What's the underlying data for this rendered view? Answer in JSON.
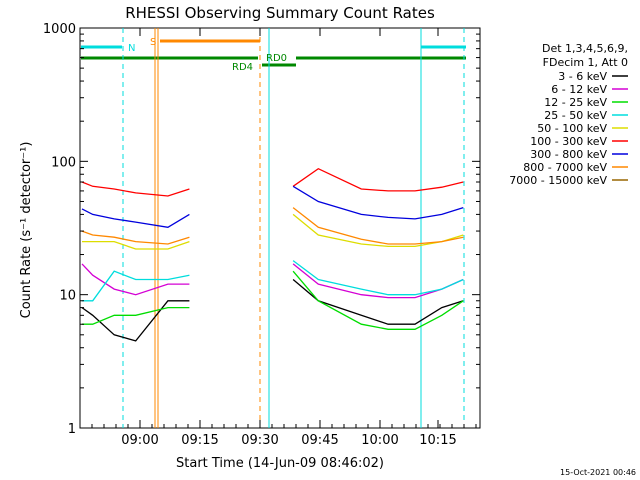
{
  "chart_data": {
    "type": "line",
    "title": "RHESSI Observing Summary Count Rates",
    "xlabel": "Start Time (14-Jun-09 08:46:02)",
    "ylabel": "Count Rate (s⁻¹ detector⁻¹)",
    "y_scale": "log",
    "ylim": [
      1,
      1000
    ],
    "xlim_minutes": [
      -2.2,
      23.7
    ],
    "x_ticks": [
      "09:00",
      "09:15",
      "09:30",
      "09:45",
      "10:00",
      "10:15"
    ],
    "y_ticks": [
      "1",
      "10",
      "100",
      "1000"
    ],
    "timestamp": "15-Oct-2021 00:46",
    "legend": {
      "position": "right",
      "header": [
        "Det 1,3,4,5,6,9,",
        "FDecim 1, Att 0"
      ]
    },
    "series": [
      {
        "name": "3 - 6 keV",
        "color": "#000000",
        "values": [
          [
            -2,
            8
          ],
          [
            0,
            7
          ],
          [
            4,
            5
          ],
          [
            8,
            4.5
          ],
          [
            14,
            9
          ],
          [
            18,
            9
          ],
          [
            18.5,
            null
          ],
          [
            37,
            null
          ],
          [
            37.3,
            13
          ],
          [
            42,
            9
          ],
          [
            50,
            7
          ],
          [
            55,
            6
          ],
          [
            60,
            6
          ],
          [
            65,
            8
          ],
          [
            69,
            9
          ],
          [
            69.5,
            null
          ]
        ]
      },
      {
        "name": "6 - 12 keV",
        "color": "#d400d4",
        "values": [
          [
            -2,
            17
          ],
          [
            0,
            14
          ],
          [
            4,
            11
          ],
          [
            8,
            10
          ],
          [
            14,
            12
          ],
          [
            18,
            12
          ],
          [
            18.5,
            null
          ],
          [
            37,
            null
          ],
          [
            37.3,
            17
          ],
          [
            42,
            12
          ],
          [
            50,
            10
          ],
          [
            55,
            9.5
          ],
          [
            60,
            9.5
          ],
          [
            65,
            11
          ],
          [
            69,
            13
          ],
          [
            69.5,
            null
          ]
        ]
      },
      {
        "name": "12 - 25 keV",
        "color": "#00dd00",
        "values": [
          [
            -2,
            6
          ],
          [
            0,
            6
          ],
          [
            4,
            7
          ],
          [
            8,
            7
          ],
          [
            14,
            8
          ],
          [
            18,
            8
          ],
          [
            18.5,
            null
          ],
          [
            37,
            null
          ],
          [
            37.3,
            15
          ],
          [
            42,
            9
          ],
          [
            50,
            6
          ],
          [
            55,
            5.5
          ],
          [
            60,
            5.5
          ],
          [
            65,
            7
          ],
          [
            69,
            9
          ],
          [
            69.5,
            null
          ]
        ]
      },
      {
        "name": "25 - 50 keV",
        "color": "#00dddd",
        "values": [
          [
            -2,
            9
          ],
          [
            0,
            9
          ],
          [
            4,
            15
          ],
          [
            8,
            13
          ],
          [
            14,
            13
          ],
          [
            18,
            14
          ],
          [
            18.5,
            null
          ],
          [
            37,
            null
          ],
          [
            37.3,
            18
          ],
          [
            42,
            13
          ],
          [
            50,
            11
          ],
          [
            55,
            10
          ],
          [
            60,
            10
          ],
          [
            65,
            11
          ],
          [
            69,
            13
          ],
          [
            69.5,
            null
          ]
        ]
      },
      {
        "name": "50 - 100 keV",
        "color": "#dddd00",
        "values": [
          [
            -2,
            25
          ],
          [
            0,
            25
          ],
          [
            4,
            25
          ],
          [
            8,
            22
          ],
          [
            14,
            22
          ],
          [
            18,
            25
          ],
          [
            18.5,
            null
          ],
          [
            37,
            null
          ],
          [
            37.3,
            40
          ],
          [
            42,
            28
          ],
          [
            50,
            24
          ],
          [
            55,
            23
          ],
          [
            60,
            23
          ],
          [
            65,
            25
          ],
          [
            69,
            28
          ],
          [
            69.5,
            null
          ]
        ]
      },
      {
        "name": "100 - 300 keV",
        "color": "#ff0000",
        "values": [
          [
            -2,
            70
          ],
          [
            0,
            65
          ],
          [
            4,
            62
          ],
          [
            8,
            58
          ],
          [
            14,
            55
          ],
          [
            18,
            62
          ],
          [
            18.5,
            null
          ],
          [
            37,
            null
          ],
          [
            37.3,
            65
          ],
          [
            42,
            88
          ],
          [
            50,
            62
          ],
          [
            55,
            60
          ],
          [
            60,
            60
          ],
          [
            65,
            64
          ],
          [
            69,
            70
          ],
          [
            69.5,
            null
          ]
        ]
      },
      {
        "name": "300 - 800 keV",
        "color": "#0000dd",
        "values": [
          [
            -2,
            44
          ],
          [
            0,
            40
          ],
          [
            4,
            37
          ],
          [
            8,
            35
          ],
          [
            14,
            32
          ],
          [
            18,
            40
          ],
          [
            18.5,
            null
          ],
          [
            37,
            null
          ],
          [
            37.3,
            65
          ],
          [
            42,
            50
          ],
          [
            50,
            40
          ],
          [
            55,
            38
          ],
          [
            60,
            37
          ],
          [
            65,
            40
          ],
          [
            69,
            45
          ],
          [
            69.5,
            null
          ]
        ]
      },
      {
        "name": "800 - 7000 keV",
        "color": "#ff8800",
        "values": [
          [
            -2,
            30
          ],
          [
            0,
            28
          ],
          [
            4,
            27
          ],
          [
            8,
            25
          ],
          [
            14,
            24
          ],
          [
            18,
            27
          ],
          [
            18.5,
            null
          ],
          [
            37,
            null
          ],
          [
            37.3,
            45
          ],
          [
            42,
            32
          ],
          [
            50,
            26
          ],
          [
            55,
            24
          ],
          [
            60,
            24
          ],
          [
            65,
            25
          ],
          [
            69,
            27
          ],
          [
            69.5,
            null
          ]
        ]
      },
      {
        "name": "7000 - 15000 keV",
        "color": "#996600",
        "values": []
      }
    ],
    "annotations": [
      {
        "label": "N",
        "color": "#00dddd"
      },
      {
        "label": "S",
        "color": "#ff8800"
      },
      {
        "label": "RD4",
        "color": "#008800"
      },
      {
        "label": "RD0",
        "color": "#008800"
      }
    ]
  }
}
